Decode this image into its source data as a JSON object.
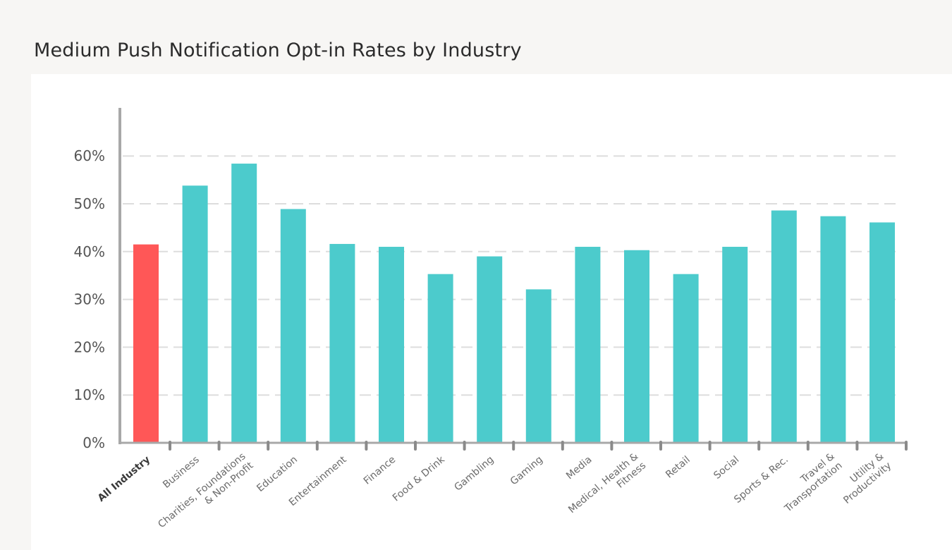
{
  "page": {
    "title": "Medium Push Notification Opt-in Rates by Industry"
  },
  "colors": {
    "highlight_bar": "#ff5757",
    "bar": "#4ccbcc",
    "axis": "#a8a8a8",
    "grid": "#dddddd"
  },
  "chart_data": {
    "type": "bar",
    "title": "Medium Push Notification Opt-in Rates by Industry",
    "xlabel": "",
    "ylabel": "",
    "ylim": [
      0,
      70
    ],
    "yticks": [
      {
        "value": 0,
        "label": "0%"
      },
      {
        "value": 10,
        "label": "10%"
      },
      {
        "value": 20,
        "label": "20%"
      },
      {
        "value": 30,
        "label": "30%"
      },
      {
        "value": 40,
        "label": "40%"
      },
      {
        "value": 50,
        "label": "50%"
      },
      {
        "value": 60,
        "label": "60%"
      }
    ],
    "grid": "horizontal dashed",
    "highlighted_category": "All Industry",
    "categories": [
      [
        "All Industry"
      ],
      [
        "Business"
      ],
      [
        "Charities, Foundations",
        "& Non-Profit"
      ],
      [
        "Education"
      ],
      [
        "Entertainment"
      ],
      [
        "Finance"
      ],
      [
        "Food & Drink"
      ],
      [
        "Gambling"
      ],
      [
        "Gaming"
      ],
      [
        "Media"
      ],
      [
        "Medical, Health &",
        "Fitness"
      ],
      [
        "Retail"
      ],
      [
        "Social"
      ],
      [
        "Sports & Rec."
      ],
      [
        "Travel &",
        "Transportation"
      ],
      [
        "Utility &",
        "Productivity"
      ]
    ],
    "values": [
      41.5,
      53.8,
      58.4,
      48.9,
      41.6,
      41.0,
      35.3,
      39.0,
      32.1,
      41.0,
      40.3,
      35.3,
      41.0,
      48.6,
      47.4,
      46.1
    ]
  }
}
